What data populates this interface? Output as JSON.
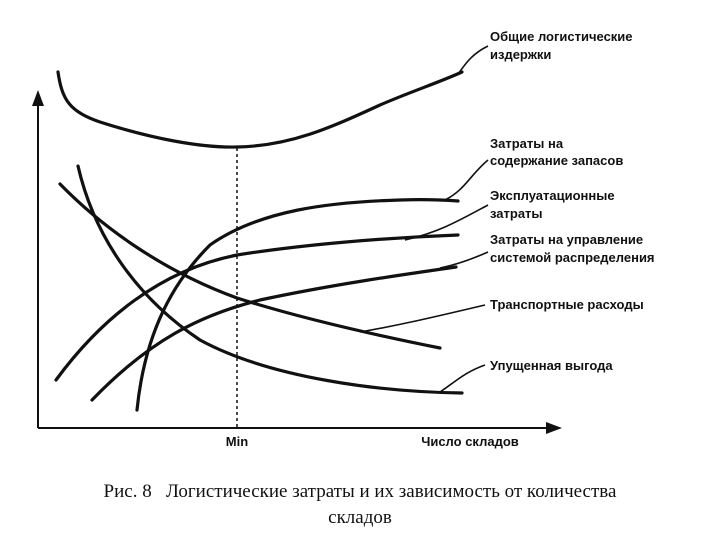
{
  "curves": [
    {
      "lines": [
        "Общие логистические",
        "издержки"
      ]
    },
    {
      "lines": [
        "Затраты на",
        "содержание запасов"
      ]
    },
    {
      "lines": [
        "Эксплуатационные",
        "затраты"
      ]
    },
    {
      "lines": [
        "Затраты на управление",
        "системой распределения"
      ]
    },
    {
      "lines": [
        "Транспортные расходы"
      ]
    },
    {
      "lines": [
        "Упущенная выгода"
      ]
    }
  ],
  "axis": {
    "min_label": "Min",
    "x_label": "Число складов"
  },
  "caption": {
    "lines": [
      "Рис. 8   Логистические затраты и их зависимость от количества",
      "складов"
    ]
  }
}
